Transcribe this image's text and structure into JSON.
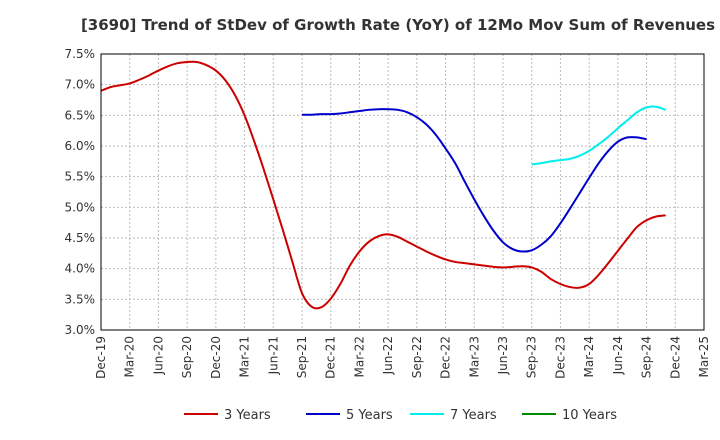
{
  "chart_data": {
    "type": "line",
    "title": "[3690]  Trend of StDev of Growth Rate (YoY) of 12Mo Mov Sum of Revenues",
    "xlabel": "",
    "ylabel": "",
    "ylim": [
      3.0,
      7.5
    ],
    "yticks": [
      3.0,
      3.5,
      4.0,
      4.5,
      5.0,
      5.5,
      6.0,
      6.5,
      7.0,
      7.5
    ],
    "ytick_labels": [
      "3.0%",
      "3.5%",
      "4.0%",
      "4.5%",
      "5.0%",
      "5.5%",
      "6.0%",
      "6.5%",
      "7.0%",
      "7.5%"
    ],
    "x_start": "Dec-19",
    "x_tick_labels": [
      "Dec-19",
      "Mar-20",
      "Jun-20",
      "Sep-20",
      "Dec-20",
      "Mar-21",
      "Jun-21",
      "Sep-21",
      "Dec-21",
      "Mar-22",
      "Jun-22",
      "Sep-22",
      "Dec-22",
      "Mar-23",
      "Jun-23",
      "Sep-23",
      "Dec-23",
      "Mar-24",
      "Jun-24",
      "Sep-24",
      "Dec-24",
      "Mar-25"
    ],
    "x_max_index": 63,
    "grid": true,
    "legend_position": "bottom",
    "series": [
      {
        "name": "3 Years",
        "color": "#cc0000",
        "start_index": 0,
        "values": [
          6.9,
          6.96,
          6.99,
          7.02,
          7.08,
          7.15,
          7.23,
          7.3,
          7.35,
          7.37,
          7.37,
          7.32,
          7.23,
          7.07,
          6.83,
          6.5,
          6.08,
          5.62,
          5.13,
          4.63,
          4.11,
          3.6,
          3.38,
          3.37,
          3.51,
          3.75,
          4.05,
          4.28,
          4.44,
          4.53,
          4.56,
          4.52,
          4.44,
          4.36,
          4.28,
          4.21,
          4.15,
          4.11,
          4.09,
          4.07,
          4.05,
          4.03,
          4.02,
          4.03,
          4.04,
          4.02,
          3.95,
          3.83,
          3.75,
          3.7,
          3.69,
          3.75,
          3.9,
          4.09,
          4.29,
          4.49,
          4.68,
          4.79,
          4.85,
          4.87
        ]
      },
      {
        "name": "5 Years",
        "color": "#0000cc",
        "start_index": 21,
        "values": [
          6.51,
          6.51,
          6.52,
          6.52,
          6.53,
          6.55,
          6.57,
          6.59,
          6.6,
          6.6,
          6.59,
          6.55,
          6.47,
          6.35,
          6.18,
          5.96,
          5.72,
          5.42,
          5.13,
          4.86,
          4.62,
          4.43,
          4.32,
          4.28,
          4.3,
          4.39,
          4.53,
          4.74,
          4.98,
          5.23,
          5.48,
          5.72,
          5.92,
          6.07,
          6.14,
          6.14,
          6.11
        ]
      },
      {
        "name": "7 Years",
        "color": "#00eeee",
        "start_index": 45,
        "values": [
          5.7,
          5.72,
          5.75,
          5.77,
          5.79,
          5.84,
          5.92,
          6.03,
          6.15,
          6.29,
          6.42,
          6.55,
          6.63,
          6.64,
          6.59
        ]
      },
      {
        "name": "10 Years",
        "color": "#008800",
        "start_index": 0,
        "values": []
      }
    ]
  }
}
